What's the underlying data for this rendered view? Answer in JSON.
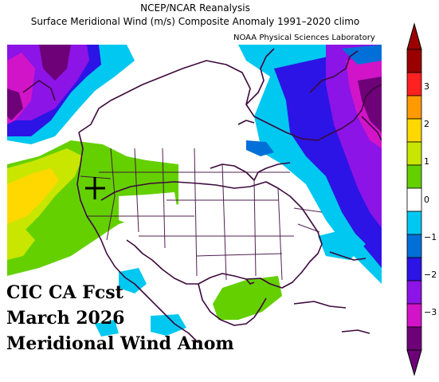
{
  "title_line1": "NCEP/NCAR Reanalysis",
  "title_line2": "Surface Meridional Wind (m/s) Composite Anomaly 1991–2020 climo",
  "credit": "NOAA Physical Sciences Laboratory",
  "caption": {
    "line1": "CIC CA Fcst",
    "line2": "March 2026",
    "line3": "Meridional Wind Anom"
  },
  "colorbar": {
    "tick_labels": [
      "3",
      "2",
      "1",
      "0",
      "−1",
      "−2",
      "−3"
    ],
    "colors": [
      "#9a0000",
      "#ff2020",
      "#ff9a00",
      "#ffd800",
      "#c8e600",
      "#64d000",
      "#ffffff",
      "#00c8f0",
      "#0070d8",
      "#2c14e6",
      "#8c14e6",
      "#d214c8",
      "#6e0078"
    ]
  },
  "map": {
    "region": "North America",
    "marker": "plus-marker",
    "background_color": "#ffffff",
    "coastline_color": "#3c0a3c"
  }
}
